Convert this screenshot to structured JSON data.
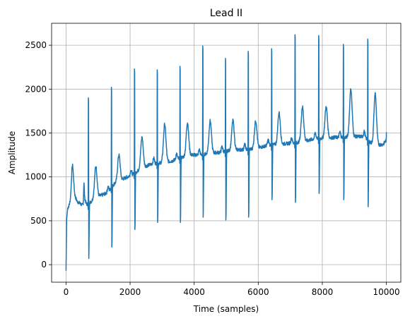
{
  "chart_data": {
    "type": "line",
    "title": "Lead II",
    "xlabel": "Time (samples)",
    "ylabel": "Amplitude",
    "xlim": [
      -450,
      10450
    ],
    "ylim": [
      -200,
      2750
    ],
    "xticks": [
      0,
      2000,
      4000,
      6000,
      8000,
      10000
    ],
    "yticks": [
      0,
      500,
      1000,
      1500,
      2000,
      2500
    ],
    "grid": true,
    "line_color": "#1f77b4",
    "baseline": {
      "x": [
        0,
        50,
        150,
        250,
        350,
        500,
        700,
        900,
        1100,
        1300,
        1500,
        1800,
        2100,
        2400,
        2700,
        3000,
        3300,
        3600,
        3900,
        4200,
        4500,
        4800,
        5100,
        5400,
        5700,
        6000,
        6300,
        6600,
        6900,
        7200,
        7500,
        7800,
        8100,
        8400,
        8700,
        9000,
        9300,
        9600,
        9900,
        10000
      ],
      "y": [
        600,
        640,
        720,
        800,
        720,
        680,
        690,
        760,
        790,
        820,
        920,
        980,
        1030,
        1110,
        1150,
        1160,
        1180,
        1220,
        1250,
        1250,
        1270,
        1280,
        1300,
        1310,
        1310,
        1330,
        1360,
        1370,
        1380,
        1390,
        1410,
        1440,
        1440,
        1450,
        1450,
        1460,
        1460,
        1360,
        1370,
        1420
      ]
    },
    "beats": [
      {
        "x": 700,
        "peak": 1900,
        "trough": 70
      },
      {
        "x": 1420,
        "peak": 2020,
        "trough": 200
      },
      {
        "x": 2140,
        "peak": 2230,
        "trough": 400
      },
      {
        "x": 2850,
        "peak": 2220,
        "trough": 480
      },
      {
        "x": 3560,
        "peak": 2260,
        "trough": 480
      },
      {
        "x": 4270,
        "peak": 2490,
        "trough": 540
      },
      {
        "x": 4980,
        "peak": 2350,
        "trough": 510
      },
      {
        "x": 5690,
        "peak": 2430,
        "trough": 540
      },
      {
        "x": 6420,
        "peak": 2460,
        "trough": 740
      },
      {
        "x": 7150,
        "peak": 2620,
        "trough": 710
      },
      {
        "x": 7890,
        "peak": 2610,
        "trough": 810
      },
      {
        "x": 8660,
        "peak": 2510,
        "trough": 740
      },
      {
        "x": 9420,
        "peak": 2570,
        "trough": 660
      }
    ],
    "t_wave_peaks": [
      1120,
      1250,
      1450,
      1600,
      1620,
      1640,
      1640,
      1640,
      1730,
      1800,
      1800,
      2000,
      1950
    ],
    "start_value": -70,
    "end_value": 1510
  }
}
